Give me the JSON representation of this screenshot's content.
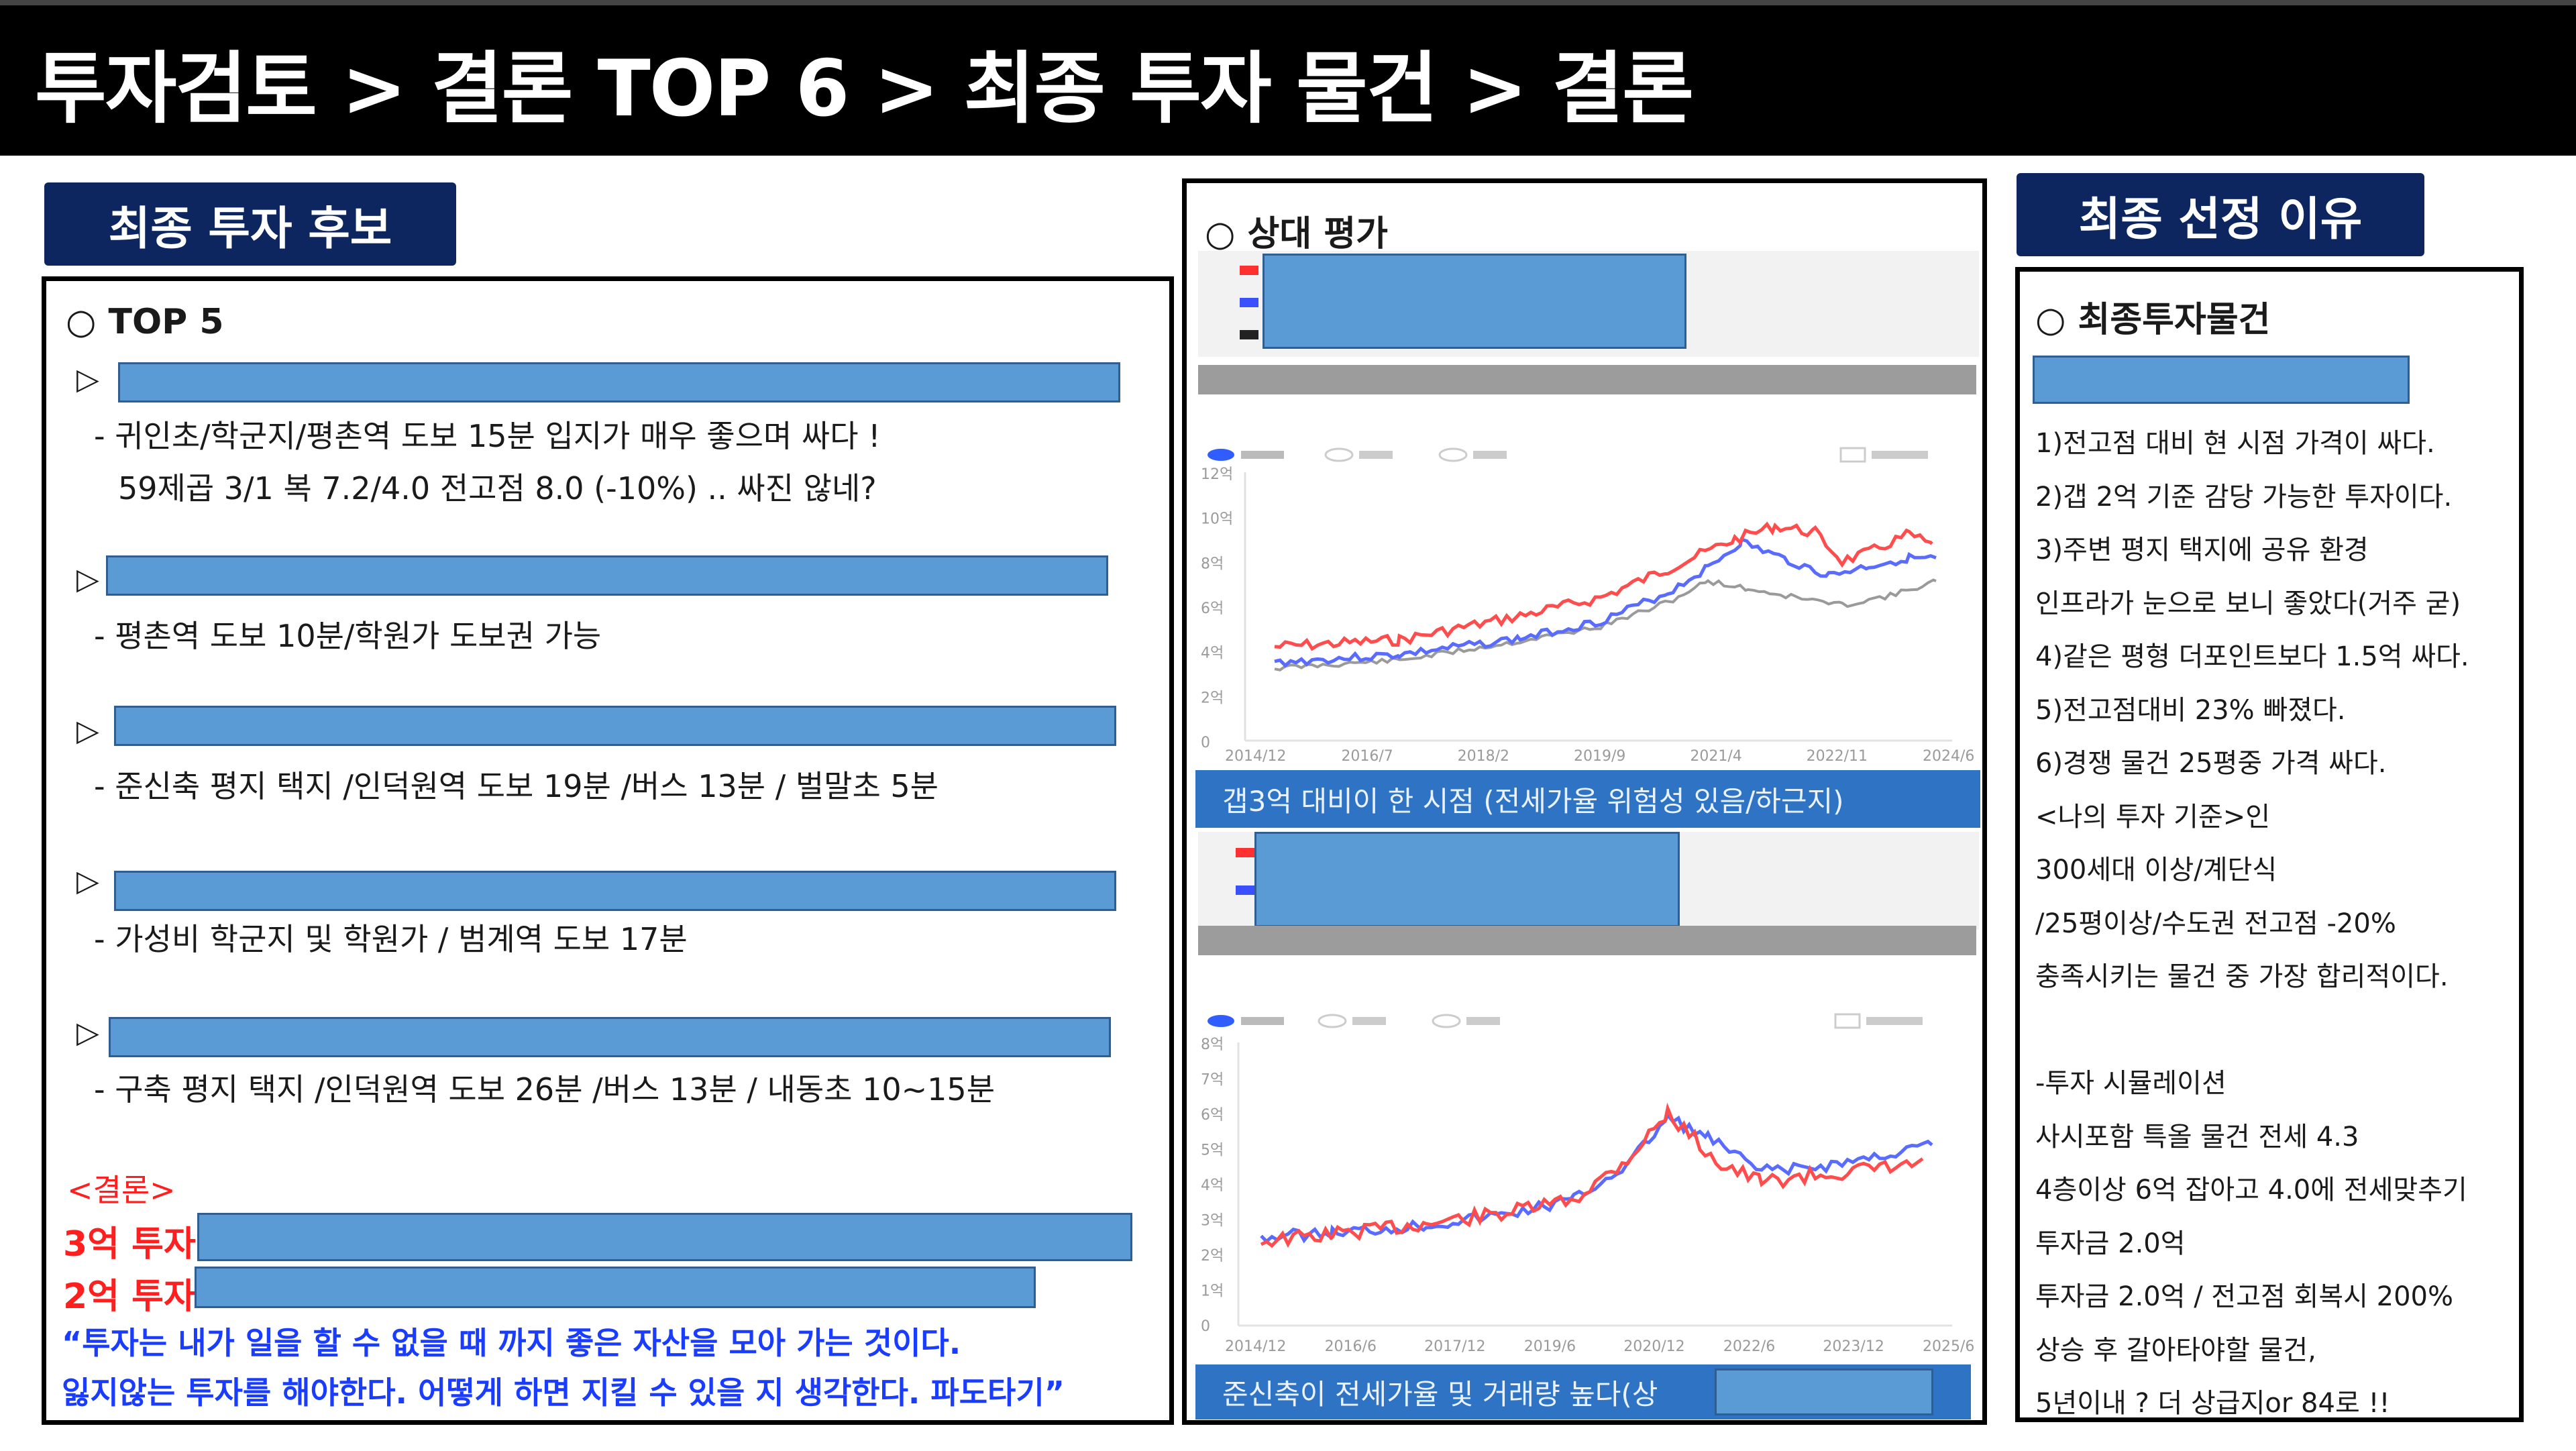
{
  "title": "투자검토 > 결론 TOP 6 > 최종 투자 물건 > 결론",
  "left": {
    "label": "최종 투자 후보",
    "heading": "○ TOP 5",
    "candidates": [
      {
        "marker": "▷",
        "lines": [
          "- 귀인초/학군지/평촌역 도보 15분 입지가 매우 좋으며 싸다 !",
          "59제곱 3/1 복 7.2/4.0 전고점 8.0 (-10%) .. 싸진 않네?"
        ]
      },
      {
        "marker": "▷",
        "lines": [
          "- 평촌역 도보 10분/학원가 도보권 가능"
        ]
      },
      {
        "marker": "▷",
        "lines": [
          "- 준신축 평지 택지 /인덕원역 도보 19분 /버스 13분 / 벌말초 5분"
        ]
      },
      {
        "marker": "▷",
        "lines": [
          "- 가성비 학군지 및 학원가 / 범계역 도보 17분"
        ]
      },
      {
        "marker": "▷",
        "lines": [
          "- 구축 평지 택지 /인덕원역 도보 26분 /버스 13분 / 내동초 10~15분"
        ]
      }
    ],
    "conclusion_label": "<결론>",
    "invest3": "3억 투자",
    "invest2": "2억 투자",
    "quote1": "“투자는 내가 일을 할 수 없을 때 까지 좋은 자산을 모아 가는 것이다.",
    "quote2": "잃지않는 투자를 해야한다. 어떻게 하면 지킬 수 있을 지 생각한다. 파도타기”"
  },
  "middle": {
    "heading": "○ 상대 평가",
    "caption1": "갭3억 대비이 한 시점 (전세가율 위험성 있음/하근지)",
    "caption2": "준신축이 전세가율 및 거래량 높다(상",
    "chart1": {
      "yticks": [
        "12억",
        "10억",
        "8억",
        "6억",
        "4억",
        "2억",
        "0"
      ],
      "xticks": [
        "2014/12",
        "2016/7",
        "2018/2",
        "2019/9",
        "2021/4",
        "2022/11",
        "2024/6"
      ]
    },
    "chart2": {
      "yticks": [
        "8억",
        "7억",
        "6억",
        "5억",
        "4억",
        "3억",
        "2억",
        "1억",
        "0"
      ],
      "xticks": [
        "2014/12",
        "2016/6",
        "2017/12",
        "2019/6",
        "2020/12",
        "2022/6",
        "2023/12",
        "2025/6"
      ]
    }
  },
  "right": {
    "label": "최종 선정 이유",
    "heading": "○ 최종투자물건",
    "lines": [
      "1)전고점 대비 현 시점 가격이 싸다.",
      "2)갭 2억 기준 감당 가능한 투자이다.",
      "3)주변 평지 택지에 공유 환경",
      "인프라가 눈으로 보니 좋았다(거주 굳)",
      "4)같은 평형 더포인트보다 1.5억 싸다.",
      "5)전고점대비 23% 빠졌다.",
      "6)경쟁 물건 25평중 가격 싸다.",
      "<나의 투자 기준>인",
      "300세대 이상/계단식",
      "/25평이상/수도권 전고점 -20%",
      "충족시키는 물건 중 가장 합리적이다.",
      "",
      "-투자 시뮬레이션",
      "사시포함 특올 물건 전세 4.3",
      "4층이상 6억 잡아고 4.0에 전세맞추기",
      "투자금 2.0억",
      "투자금 2.0억 / 전고점 회복시 200%",
      "상승 후 갈아타야할 물건,",
      "5년이내 ? 더 상급지or 84로 !!"
    ]
  },
  "colors": {
    "accent_blue": "#5b9bd5",
    "label_navy": "#0d2660",
    "red_series": "#ff4d4d",
    "blue_series": "#5a6cff",
    "gray_series": "#9a9a9a"
  }
}
